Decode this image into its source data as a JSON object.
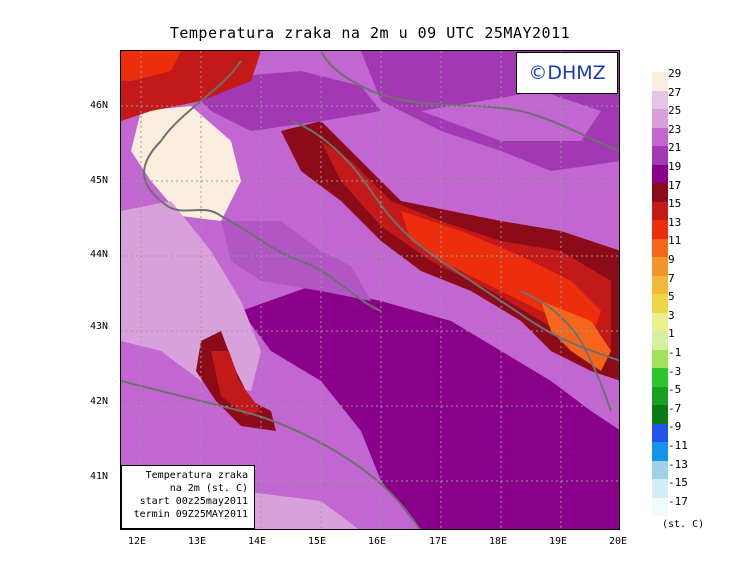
{
  "title": "Temperatura zraka na 2m u 09 UTC 25MAY2011",
  "logo": "©DHMZ",
  "info_box": {
    "line1": "Temperatura zraka",
    "line2": "na 2m (st. C)",
    "line3": "start 00z25may2011",
    "line4": "termin 09Z25MAY2011"
  },
  "lat_ticks": [
    "46N",
    "45N",
    "44N",
    "43N",
    "42N",
    "41N"
  ],
  "lon_ticks": [
    "12E",
    "13E",
    "14E",
    "15E",
    "16E",
    "17E",
    "18E",
    "19E",
    "20E"
  ],
  "colorbar": {
    "labels": [
      "29",
      "27",
      "25",
      "23",
      "21",
      "19",
      "17",
      "15",
      "13",
      "11",
      "9",
      "7",
      "5",
      "3",
      "1",
      "-1",
      "-3",
      "-5",
      "-7",
      "-9",
      "-11",
      "-13",
      "-15",
      "-17"
    ],
    "colors": [
      "#fbeede",
      "#e9c3e6",
      "#d9a1dc",
      "#c266d1",
      "#a338b4",
      "#8a008a",
      "#8b0b18",
      "#c31919",
      "#ec2e0c",
      "#f6661a",
      "#f2962b",
      "#f2b83a",
      "#eed747",
      "#eaf08f",
      "#d7f0a0",
      "#a2e25a",
      "#2ec62e",
      "#18a020",
      "#0b7a14",
      "#2253ea",
      "#1593ea",
      "#9fd2e6",
      "#d2eef2",
      "#f0fbfd"
    ],
    "unit": "(st. C)"
  }
}
